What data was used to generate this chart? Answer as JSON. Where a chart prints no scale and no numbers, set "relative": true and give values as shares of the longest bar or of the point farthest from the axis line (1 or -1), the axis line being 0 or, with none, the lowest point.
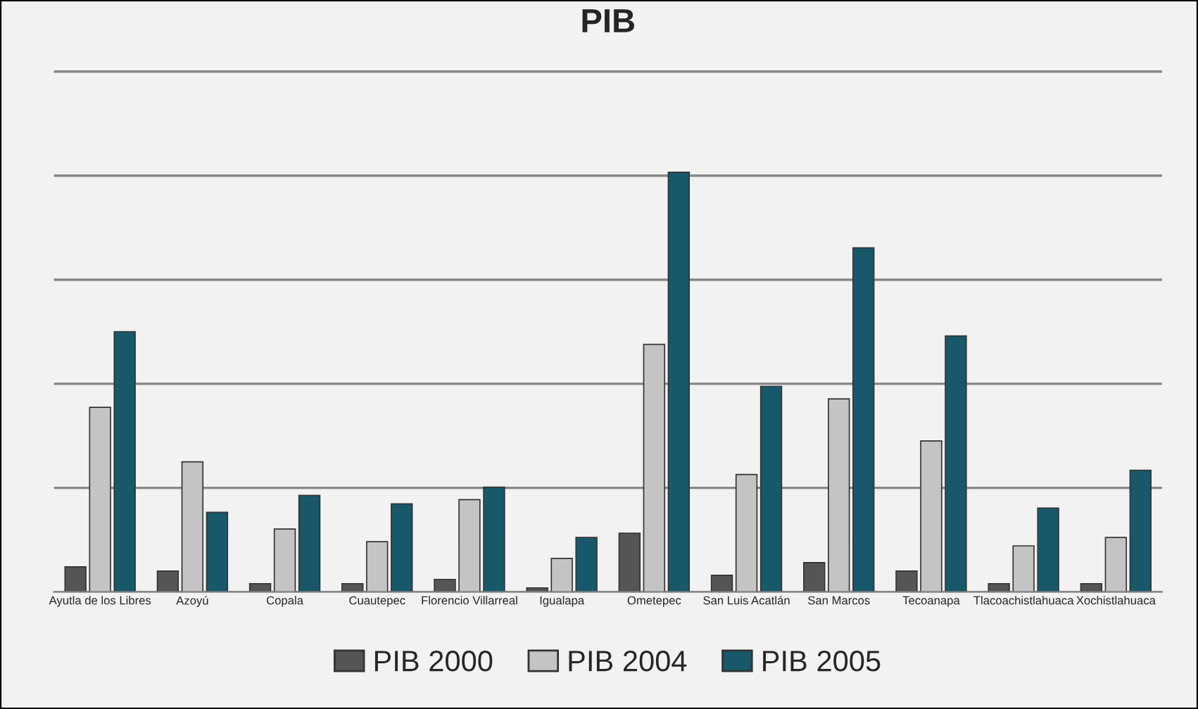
{
  "chart_data": {
    "type": "bar",
    "title": "PIB",
    "relative": true,
    "grid": "y",
    "legend": "bottom",
    "categories": [
      "Ayutla de los Libres",
      "Azoyú",
      "Copala",
      "Cuautepec",
      "Florencio Villarreal",
      "Igualapa",
      "Ometepec",
      "San Luis Acatlán",
      "San Marcos",
      "Tecoanapa",
      "Tlacoachistlahuaca",
      "Xochistlahuaca"
    ],
    "series": [
      {
        "name": "PIB 2000",
        "color": "#555555",
        "values": [
          0.06,
          0.05,
          0.02,
          0.02,
          0.03,
          0.01,
          0.14,
          0.04,
          0.07,
          0.05,
          0.02,
          0.02
        ]
      },
      {
        "name": "PIB 2004",
        "color": "#c4c4c4",
        "values": [
          0.44,
          0.31,
          0.15,
          0.12,
          0.22,
          0.08,
          0.59,
          0.28,
          0.46,
          0.36,
          0.11,
          0.13
        ]
      },
      {
        "name": "PIB 2005",
        "color": "#17596a",
        "values": [
          0.62,
          0.19,
          0.23,
          0.21,
          0.25,
          0.13,
          1.0,
          0.49,
          0.82,
          0.61,
          0.2,
          0.29
        ]
      }
    ]
  }
}
